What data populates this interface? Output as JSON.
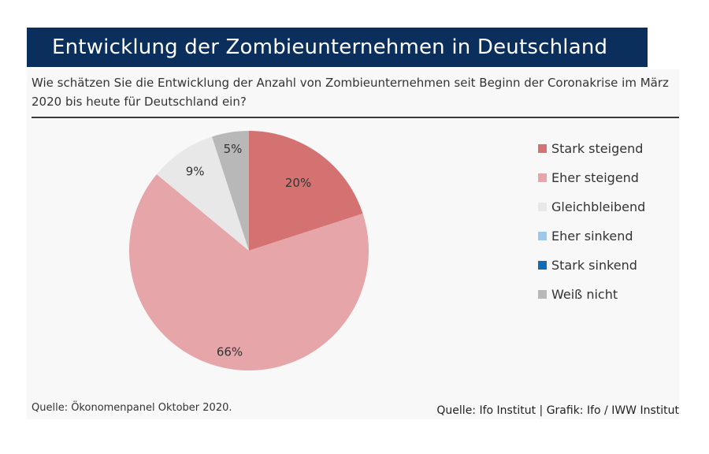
{
  "header": {
    "title": "Entwicklung der Zombieunternehmen in Deutschland",
    "question": "Wie schätzen Sie die Entwicklung der Anzahl von Zombieunternehmen seit Beginn der Coronakrise im März 2020 bis heute für Deutschland ein?"
  },
  "footer": {
    "source_left": "Quelle: Ökonomenpanel Oktober 2020.",
    "source_right": "Quelle: Ifo Institut | Grafik: Ifo / IWW Institut"
  },
  "colors": {
    "title_background": "#0a2f5c",
    "stark_steigend": "#d47272",
    "eher_steigend": "#e6a5a8",
    "gleichbleibend": "#e8e8e8",
    "eher_sinkend": "#9cc8ec",
    "stark_sinkend": "#0f6db8",
    "weiss_nicht": "#b8b8b8"
  },
  "chart_data": {
    "type": "pie",
    "categories": [
      "Stark steigend",
      "Eher steigend",
      "Gleichbleibend",
      "Eher sinkend",
      "Stark sinkend",
      "Weiß nicht"
    ],
    "values": [
      20,
      66,
      9,
      0,
      0,
      5
    ],
    "data_labels": [
      "20%",
      "66%",
      "9%",
      "",
      "",
      "5%"
    ],
    "colors": [
      "#d47272",
      "#e6a5a8",
      "#e8e8e8",
      "#9cc8ec",
      "#0f6db8",
      "#b8b8b8"
    ],
    "legend_position": "right"
  }
}
